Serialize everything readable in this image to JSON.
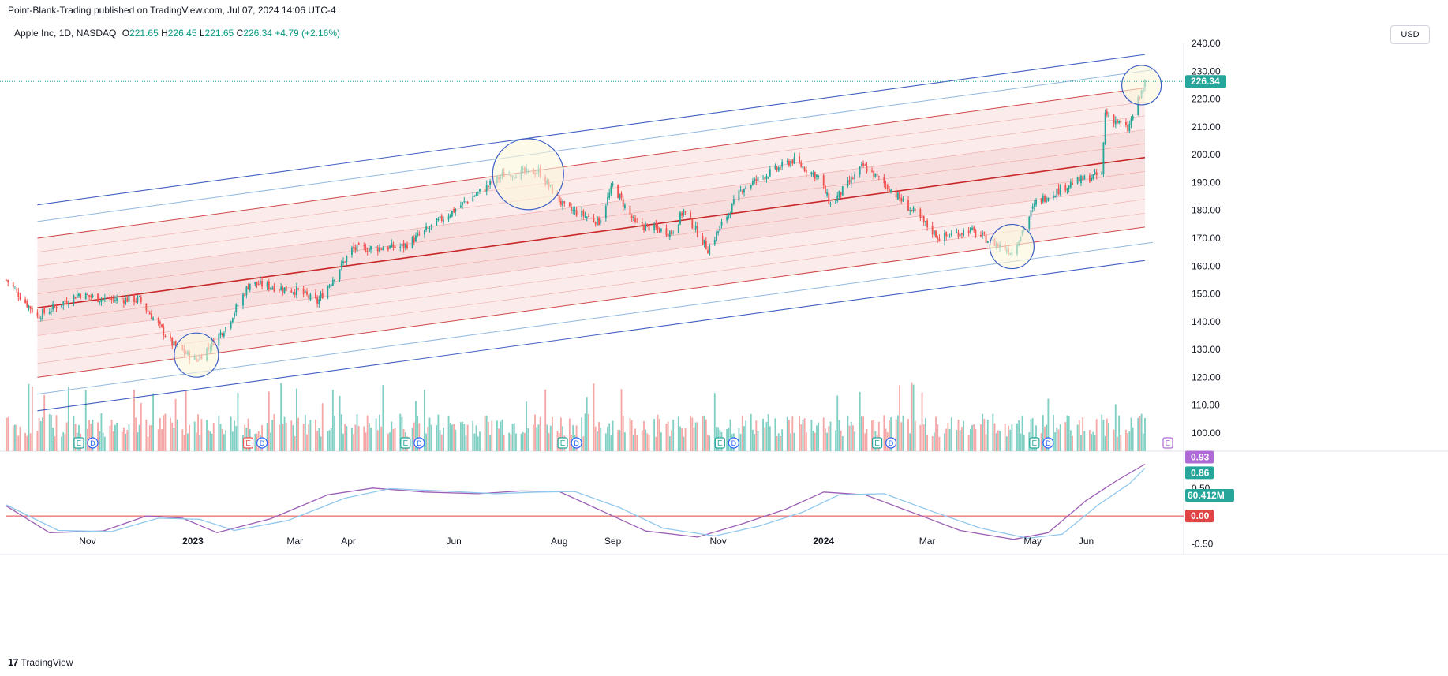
{
  "header": {
    "publisher": "Point-Blank-Trading published on TradingView.com, Jul 07, 2024 14:06 UTC-4",
    "symbol": "Apple Inc, 1D, NASDAQ",
    "o_label": "O",
    "o_value": "221.65",
    "h_label": "H",
    "h_value": "226.45",
    "l_label": "L",
    "l_value": "221.65",
    "c_label": "C",
    "c_value": "226.34",
    "change": "+4.79 (+2.16%)",
    "currency": "USD"
  },
  "footer": {
    "brand": "TradingView",
    "logo": "17"
  },
  "colors": {
    "up": "#26a69a",
    "down": "#ef5350",
    "vol_up": "#7fcfc3",
    "vol_down": "#f4a7a5",
    "regression_mid": "#c62828",
    "regression_band": "#e57373",
    "outer_channel": "#3f5fbf",
    "inner_channel": "#90b8e0",
    "oscillator_main": "#9c5fb5",
    "oscillator_signal": "#90c8ee",
    "zero_line": "#e04444",
    "circle": "#3b5fc4",
    "circle_fill": "#fdf7da"
  },
  "chart_data": [
    {
      "type": "candlestick",
      "title": "Apple Inc, 1D, NASDAQ",
      "x_ticks": [
        "Nov",
        "2023",
        "Mar",
        "Apr",
        "Jun",
        "Aug",
        "Sep",
        "Nov",
        "2024",
        "Mar",
        "May",
        "Jun"
      ],
      "y_ticks": [
        "240.00",
        "230.00",
        "220.00",
        "210.00",
        "200.00",
        "190.00",
        "180.00",
        "170.00",
        "160.00",
        "150.00",
        "140.00",
        "130.00",
        "120.00",
        "110.00",
        "100.00"
      ],
      "ylim": [
        98,
        243
      ],
      "last_price": "226.34",
      "last_volume": "60.412M",
      "x_range": [
        "2022-09-15",
        "2024-07-05"
      ],
      "anchor_prices": [
        [
          "2022-09-15",
          155
        ],
        [
          "2022-10-03",
          142
        ],
        [
          "2022-10-27",
          150
        ],
        [
          "2022-11-10",
          148
        ],
        [
          "2022-12-01",
          148
        ],
        [
          "2022-12-20",
          132
        ],
        [
          "2023-01-03",
          126
        ],
        [
          "2023-01-20",
          138
        ],
        [
          "2023-02-03",
          154
        ],
        [
          "2023-03-03",
          151
        ],
        [
          "2023-03-14",
          147
        ],
        [
          "2023-04-03",
          166
        ],
        [
          "2023-05-03",
          167
        ],
        [
          "2023-06-01",
          180
        ],
        [
          "2023-06-30",
          193
        ],
        [
          "2023-07-20",
          194
        ],
        [
          "2023-08-04",
          181
        ],
        [
          "2023-08-24",
          176
        ],
        [
          "2023-09-01",
          189
        ],
        [
          "2023-09-14",
          175
        ],
        [
          "2023-10-05",
          172
        ],
        [
          "2023-10-12",
          180
        ],
        [
          "2023-10-26",
          166
        ],
        [
          "2023-11-15",
          188
        ],
        [
          "2023-12-14",
          198
        ],
        [
          "2023-12-29",
          192
        ],
        [
          "2024-01-05",
          182
        ],
        [
          "2024-01-24",
          196
        ],
        [
          "2024-02-08",
          188
        ],
        [
          "2024-03-08",
          170
        ],
        [
          "2024-03-25",
          173
        ],
        [
          "2024-04-19",
          165
        ],
        [
          "2024-05-03",
          183
        ],
        [
          "2024-05-24",
          190
        ],
        [
          "2024-06-10",
          193
        ],
        [
          "2024-06-12",
          215
        ],
        [
          "2024-06-25",
          209
        ],
        [
          "2024-07-05",
          226
        ]
      ],
      "earnings_markers": [
        {
          "date": "2022-10-27",
          "label": "E",
          "color": "#26a69a"
        },
        {
          "date": "2023-02-02",
          "label": "E",
          "color": "#ef5350"
        },
        {
          "date": "2023-05-04",
          "label": "E",
          "color": "#26a69a"
        },
        {
          "date": "2023-08-03",
          "label": "E",
          "color": "#26a69a"
        },
        {
          "date": "2023-11-02",
          "label": "E",
          "color": "#26a69a"
        },
        {
          "date": "2024-02-01",
          "label": "E",
          "color": "#26a69a"
        },
        {
          "date": "2024-05-02",
          "label": "E",
          "color": "#26a69a"
        },
        {
          "date": "2024-08-01",
          "label": "E",
          "color": "#b06ad8"
        }
      ],
      "dividend_markers": [
        {
          "date": "2022-11-04",
          "label": "D"
        },
        {
          "date": "2023-02-10",
          "label": "D"
        },
        {
          "date": "2023-05-12",
          "label": "D"
        },
        {
          "date": "2023-08-11",
          "label": "D"
        },
        {
          "date": "2023-11-10",
          "label": "D"
        },
        {
          "date": "2024-02-09",
          "label": "D"
        },
        {
          "date": "2024-05-10",
          "label": "D"
        }
      ],
      "regression_channel": {
        "start": {
          "date": "2022-10-03",
          "mid": 145
        },
        "end": {
          "date": "2024-07-05",
          "mid": 199
        },
        "band_offsets": [
          -25,
          -20,
          -15,
          -10,
          -5,
          5,
          10,
          15,
          20,
          25
        ],
        "inner_offsets": [
          -31,
          31
        ],
        "outer_offsets": [
          -37,
          37
        ]
      },
      "highlight_circles": [
        {
          "date": "2023-01-03",
          "price": 128
        },
        {
          "date": "2023-07-14",
          "price": 193
        },
        {
          "date": "2024-04-19",
          "price": 167
        },
        {
          "date": "2024-07-03",
          "price": 225
        }
      ]
    },
    {
      "type": "line",
      "title": "oscillator",
      "y_ticks": [
        "0.50",
        "-0.50"
      ],
      "ylim": [
        -0.65,
        1.05
      ],
      "zero_line": 0.0,
      "last_values": {
        "main": "0.93",
        "signal": "0.86",
        "zero": "0.00"
      },
      "series": [
        {
          "role": "main",
          "x": [
            "2022-09-15",
            "2022-10-10",
            "2022-11-10",
            "2022-12-05",
            "2022-12-26",
            "2023-01-15",
            "2023-02-15",
            "2023-03-20",
            "2023-04-15",
            "2023-05-15",
            "2023-06-15",
            "2023-07-10",
            "2023-08-01",
            "2023-08-25",
            "2023-09-20",
            "2023-10-20",
            "2023-11-15",
            "2023-12-10",
            "2024-01-01",
            "2024-01-25",
            "2024-02-25",
            "2024-03-20",
            "2024-04-20",
            "2024-05-10",
            "2024-06-01",
            "2024-06-20",
            "2024-07-05"
          ],
          "y": [
            0.18,
            -0.3,
            -0.27,
            0.0,
            -0.04,
            -0.3,
            -0.05,
            0.38,
            0.5,
            0.43,
            0.4,
            0.45,
            0.44,
            0.1,
            -0.27,
            -0.38,
            -0.14,
            0.12,
            0.43,
            0.38,
            0.02,
            -0.26,
            -0.42,
            -0.3,
            0.28,
            0.66,
            0.93
          ]
        },
        {
          "role": "signal",
          "x": [
            "2022-09-15",
            "2022-10-15",
            "2022-11-15",
            "2022-12-12",
            "2023-01-05",
            "2023-01-25",
            "2023-02-25",
            "2023-03-30",
            "2023-04-25",
            "2023-05-25",
            "2023-06-25",
            "2023-07-20",
            "2023-08-10",
            "2023-09-05",
            "2023-09-30",
            "2023-10-30",
            "2023-11-25",
            "2023-12-20",
            "2024-01-10",
            "2024-02-05",
            "2024-03-05",
            "2024-04-01",
            "2024-04-28",
            "2024-05-18",
            "2024-06-08",
            "2024-06-26",
            "2024-07-05"
          ],
          "y": [
            0.2,
            -0.26,
            -0.28,
            -0.04,
            -0.06,
            -0.26,
            -0.08,
            0.32,
            0.49,
            0.45,
            0.4,
            0.43,
            0.44,
            0.15,
            -0.22,
            -0.36,
            -0.18,
            0.07,
            0.38,
            0.4,
            0.07,
            -0.22,
            -0.4,
            -0.33,
            0.2,
            0.58,
            0.86
          ]
        }
      ]
    }
  ]
}
